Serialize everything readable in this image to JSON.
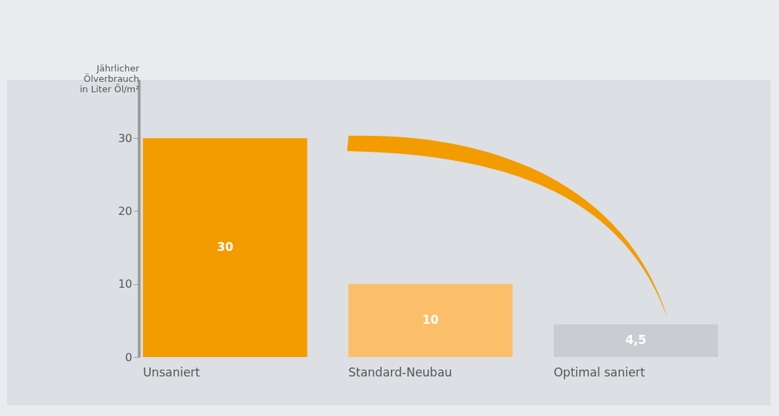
{
  "chart_data": {
    "type": "bar",
    "ylabel": "Jährlicher Ölverbrauch in Liter Öl/m²",
    "categories": [
      "Unsaniert",
      "Standard-Neubau",
      "Optimal saniert"
    ],
    "values": [
      30,
      10,
      4.5
    ],
    "colors": [
      "#f39c00",
      "#fbbf6a",
      "#c9ccd0"
    ],
    "value_labels": [
      "30",
      "10",
      "4,5"
    ],
    "ylim": [
      0,
      38
    ],
    "yticks": [
      0,
      10,
      20,
      30
    ],
    "grid": false
  }
}
